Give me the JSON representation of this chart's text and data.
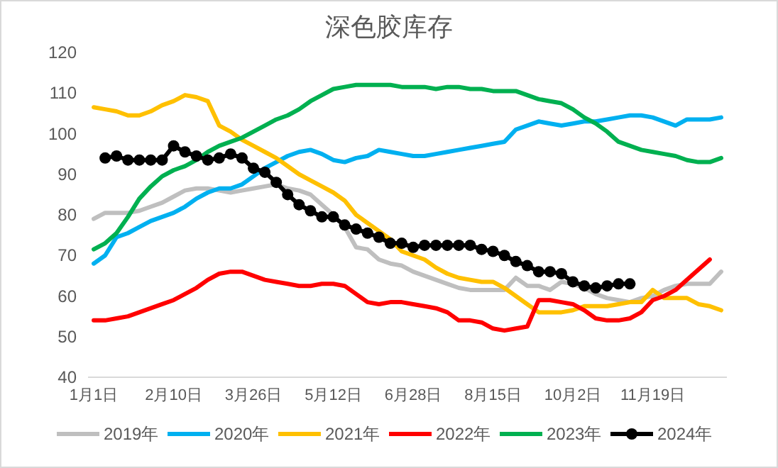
{
  "chart_data": {
    "type": "line",
    "title": "深色胶库存",
    "categories": [
      "1月1日",
      null,
      null,
      null,
      null,
      null,
      null,
      "2月10日",
      null,
      null,
      null,
      null,
      null,
      null,
      "3月26日",
      null,
      null,
      null,
      null,
      null,
      null,
      "5月12日",
      null,
      null,
      null,
      null,
      null,
      null,
      "6月28日",
      null,
      null,
      null,
      null,
      null,
      null,
      "8月15日",
      null,
      null,
      null,
      null,
      null,
      null,
      "10月2日",
      null,
      null,
      null,
      null,
      null,
      null,
      "11月19日",
      null,
      null,
      null,
      null,
      null,
      null
    ],
    "ylim": [
      40,
      120
    ],
    "yticks": [
      40,
      50,
      60,
      70,
      80,
      90,
      100,
      110,
      120
    ],
    "grid": false,
    "legend": "bottom",
    "series": [
      {
        "name": "2019年",
        "color": "#bfbfbf",
        "values": [
          79,
          80.5,
          80.5,
          80.5,
          81,
          82,
          83,
          84.5,
          86,
          86.5,
          86.5,
          86,
          85.5,
          86,
          86.5,
          87,
          87.5,
          86.5,
          86,
          85,
          82.5,
          80,
          77,
          72,
          71.5,
          69,
          68,
          67.5,
          66,
          65,
          64,
          63,
          62,
          61.5,
          61.5,
          61.5,
          61.5,
          64.5,
          62.5,
          62.5,
          61.5,
          63.5,
          63,
          62,
          60.5,
          59.5,
          59,
          58.5,
          59.5,
          60,
          61.5,
          62.5,
          63,
          63,
          63,
          66
        ]
      },
      {
        "name": "2020年",
        "color": "#00b0f0",
        "values": [
          68,
          70,
          74.5,
          75.5,
          77,
          78.5,
          79.5,
          80.5,
          82,
          84,
          85.5,
          86.5,
          86.5,
          87.5,
          89.5,
          91.5,
          93,
          94.5,
          95.5,
          96,
          95,
          93.5,
          93,
          94,
          94.5,
          96,
          95.5,
          95,
          94.5,
          94.5,
          95,
          95.5,
          96,
          96.5,
          97,
          97.5,
          98,
          101,
          102,
          103,
          102.5,
          102,
          102.5,
          103,
          103,
          103.5,
          104,
          104.5,
          104.5,
          104,
          103,
          102,
          103.5,
          103.5,
          103.5,
          104
        ]
      },
      {
        "name": "2021年",
        "color": "#ffc000",
        "values": [
          106.5,
          106,
          105.5,
          104.5,
          104.5,
          105.5,
          107,
          108,
          109.5,
          109,
          108,
          102,
          100.5,
          98.5,
          97,
          95.5,
          94,
          92,
          90,
          88.5,
          87,
          85.5,
          83.5,
          80,
          78,
          76,
          74,
          71,
          70,
          69,
          67,
          65.5,
          64.5,
          64,
          63.5,
          63.5,
          62,
          60,
          58,
          56,
          56,
          56,
          56.5,
          57.5,
          57.5,
          57.5,
          58,
          58.5,
          58.5,
          61.5,
          59.5,
          59.5,
          59.5,
          58,
          57.5,
          56.5
        ]
      },
      {
        "name": "2022年",
        "color": "#ff0000",
        "values": [
          54,
          54,
          54.5,
          55,
          56,
          57,
          58,
          59,
          60.5,
          62,
          64,
          65.5,
          66,
          66,
          65,
          64,
          63.5,
          63,
          62.5,
          62.5,
          63,
          63,
          62.5,
          60.5,
          58.5,
          58,
          58.5,
          58.5,
          58,
          57.5,
          57,
          56,
          54,
          54,
          53.5,
          52,
          51.5,
          52,
          52.5,
          59,
          59,
          58.5,
          58,
          56.5,
          54.5,
          54,
          54,
          54.5,
          56,
          59,
          60,
          61.5,
          64,
          66.5,
          69,
          null
        ]
      },
      {
        "name": "2023年",
        "color": "#00b050",
        "values": [
          71.5,
          73,
          75.5,
          79.5,
          84,
          87,
          89.5,
          91,
          92,
          93.5,
          95.5,
          97,
          98,
          99,
          100.5,
          102,
          103.5,
          104.5,
          106,
          108,
          109.5,
          111,
          111.5,
          112,
          112,
          112,
          112,
          111.5,
          111.5,
          111.5,
          111,
          111.5,
          111.5,
          111,
          111,
          110.5,
          110.5,
          110.5,
          109.5,
          108.5,
          108,
          107.5,
          106,
          104,
          102.5,
          100.5,
          98,
          97,
          96,
          95.5,
          95,
          94.5,
          93.5,
          93,
          93,
          94
        ]
      },
      {
        "name": "2024年",
        "color": "#000000",
        "marker": "circle",
        "values": [
          null,
          94,
          94.5,
          93.5,
          93.5,
          93.5,
          93.5,
          97,
          95.5,
          94.5,
          93.5,
          94,
          95,
          94,
          91.5,
          90.5,
          88,
          85,
          82.5,
          81,
          79.5,
          79.5,
          77.5,
          76.5,
          75.5,
          74.5,
          73,
          73,
          72,
          72.5,
          72.5,
          72.5,
          72.5,
          72.5,
          71.5,
          71,
          70,
          68.5,
          67.5,
          66,
          66,
          65.5,
          63.5,
          62.5,
          62,
          62.5,
          63,
          63,
          null,
          null,
          null,
          null,
          null,
          null,
          null,
          null
        ]
      }
    ]
  }
}
